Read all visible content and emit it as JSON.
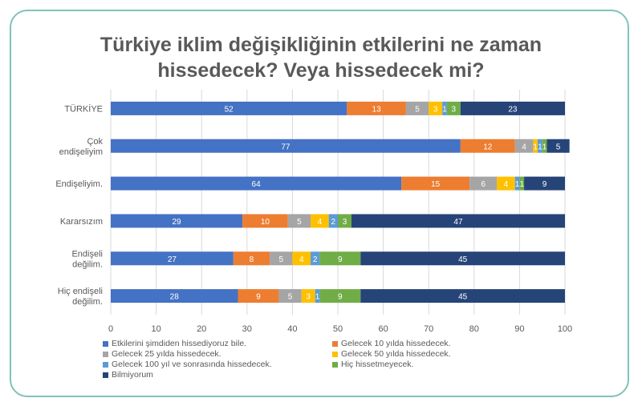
{
  "chart_data": {
    "type": "bar",
    "orientation": "horizontal",
    "stacked": true,
    "title": [
      "Türkiye iklim değişikliğinin etkilerini ne zaman",
      "hissedecek? Veya hissedecek mi?"
    ],
    "categories": [
      [
        "TÜRKİYE"
      ],
      [
        "Çok",
        "endişeliyim"
      ],
      [
        "Endişeliyim."
      ],
      [
        "Kararsızım"
      ],
      [
        "Endişeli",
        "değilim."
      ],
      [
        "Hiç endişeli",
        "değilim."
      ]
    ],
    "xlim": [
      0,
      100
    ],
    "xticks": [
      0,
      10,
      20,
      30,
      40,
      50,
      60,
      70,
      80,
      90,
      100
    ],
    "grid": true,
    "legend_position": "bottom",
    "series": [
      {
        "name": "Etkilerini şimdiden hissediyoruz bile.",
        "color": "#4472c4",
        "values": [
          52,
          77,
          64,
          29,
          27,
          28
        ]
      },
      {
        "name": "Gelecek 10 yılda hissedecek.",
        "color": "#ed7d31",
        "values": [
          13,
          12,
          15,
          10,
          8,
          9
        ]
      },
      {
        "name": "Gelecek 25 yılda hissedecek.",
        "color": "#a5a5a5",
        "values": [
          5,
          4,
          6,
          5,
          5,
          5
        ]
      },
      {
        "name": "Gelecek 50 yılda hissedecek.",
        "color": "#ffc000",
        "values": [
          3,
          1,
          4,
          4,
          4,
          3
        ]
      },
      {
        "name": "Gelecek 100 yıl ve sonrasında hissedecek.",
        "color": "#5b9bd5",
        "values": [
          1,
          1,
          1,
          2,
          2,
          1
        ]
      },
      {
        "name": "Hiç hissetmeyecek.",
        "color": "#70ad47",
        "values": [
          3,
          1,
          1,
          3,
          9,
          9
        ]
      },
      {
        "name": "Bilmiyorum",
        "color": "#264478",
        "values": [
          23,
          5,
          9,
          47,
          45,
          45
        ]
      }
    ]
  }
}
